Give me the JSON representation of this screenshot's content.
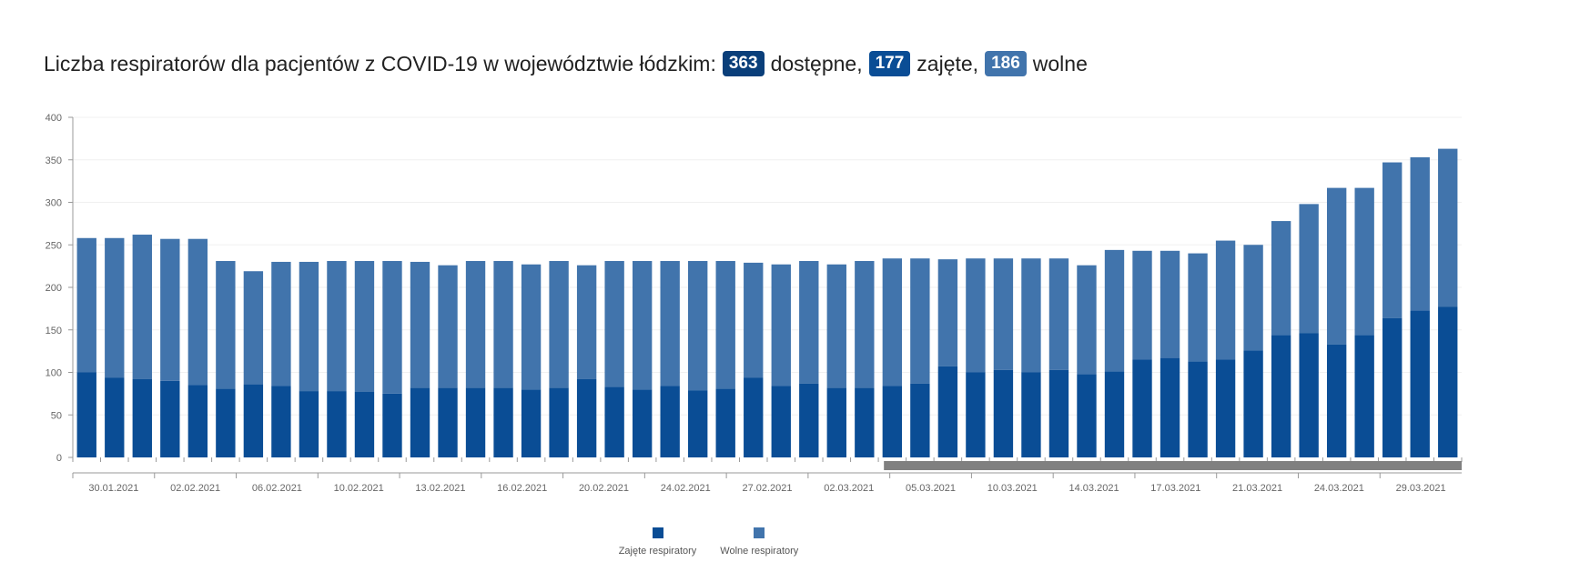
{
  "title": {
    "prefix": "Liczba respiratorów dla pacjentów z COVID-19 w województwie łódzkim:",
    "available_value": "363",
    "available_label": "dostępne,",
    "occupied_value": "177",
    "occupied_label": "zajęte,",
    "free_value": "186",
    "free_label": "wolne"
  },
  "colors": {
    "occupied": "#0a4d95",
    "free": "#4174ac",
    "badge_available": "#0a3f7a",
    "badge_occupied": "#0a4d95",
    "badge_free": "#4174ac",
    "scrollbar": "#808080"
  },
  "chart_data": {
    "type": "bar",
    "stacked": true,
    "ylim": [
      0,
      400
    ],
    "yticks": [
      0,
      50,
      100,
      150,
      200,
      250,
      300,
      350,
      400
    ],
    "x_tick_labels": [
      "30.01.2021",
      "02.02.2021",
      "06.02.2021",
      "10.02.2021",
      "13.02.2021",
      "16.02.2021",
      "20.02.2021",
      "24.02.2021",
      "27.02.2021",
      "02.03.2021",
      "05.03.2021",
      "10.03.2021",
      "14.03.2021",
      "17.03.2021",
      "21.03.2021",
      "24.03.2021",
      "29.03.2021"
    ],
    "series": [
      {
        "name": "Zajęte respiratory",
        "values": [
          100,
          94,
          92,
          90,
          85,
          81,
          86,
          84,
          78,
          78,
          77,
          75,
          82,
          82,
          82,
          82,
          80,
          82,
          92,
          83,
          80,
          84,
          79,
          81,
          94,
          84,
          87,
          82,
          82,
          84,
          87,
          107,
          100,
          103,
          100,
          103,
          98,
          101,
          115,
          117,
          113,
          115,
          126,
          144,
          146,
          133,
          144,
          164,
          173,
          177
        ]
      },
      {
        "name": "Wolne respiratory",
        "values": [
          158,
          164,
          170,
          167,
          172,
          150,
          133,
          146,
          152,
          153,
          154,
          156,
          148,
          144,
          149,
          149,
          147,
          149,
          134,
          148,
          151,
          147,
          152,
          150,
          135,
          143,
          144,
          145,
          149,
          150,
          147,
          126,
          134,
          131,
          134,
          131,
          128,
          143,
          128,
          126,
          127,
          140,
          124,
          134,
          152,
          184,
          173,
          183,
          180,
          186
        ]
      }
    ],
    "legend_position": "bottom",
    "grid": true
  }
}
